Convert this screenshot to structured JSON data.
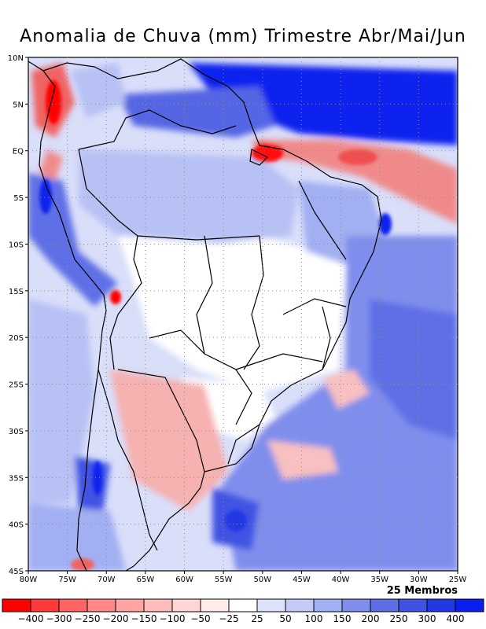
{
  "title": "Anomalia de Chuva (mm) Trimestre Abr/Mai/Jun",
  "footer_note": "25 Membros",
  "map": {
    "lon_range": [
      -80,
      -25
    ],
    "lat_range": [
      -45,
      10
    ],
    "lon_ticks": [
      "80W",
      "75W",
      "70W",
      "65W",
      "60W",
      "55W",
      "50W",
      "45W",
      "40W",
      "35W",
      "30W",
      "25W"
    ],
    "lat_ticks": [
      "10N",
      "5N",
      "EQ",
      "5S",
      "10S",
      "15S",
      "20S",
      "25S",
      "30S",
      "35S",
      "40S",
      "45S"
    ],
    "gridlines": "dotted",
    "colors": {
      "strong_positive": "#0b1ff0",
      "positive": "#6d7de8",
      "weak_positive": "#c9d0f7",
      "neutral": "#ffffff",
      "weak_negative": "#fbd2d2",
      "negative": "#f08080",
      "strong_negative": "#f50a0a",
      "ocean_background": "#dfe3f9"
    }
  },
  "legend": {
    "labels": [
      "-400",
      "-300",
      "-250",
      "-200",
      "-150",
      "-100",
      "-50",
      "-25",
      "25",
      "50",
      "100",
      "150",
      "200",
      "250",
      "300",
      "400"
    ],
    "colors": [
      "#ff0000",
      "#ff3a3a",
      "#ff6464",
      "#ff8787",
      "#ffa3a3",
      "#ffbcbc",
      "#ffd6d6",
      "#ffebeb",
      "#ffffff",
      "#dee3fb",
      "#c2cbf7",
      "#a2aff2",
      "#7f8eec",
      "#5e6fe6",
      "#3f52e3",
      "#2238e5",
      "#0a1eee"
    ]
  }
}
